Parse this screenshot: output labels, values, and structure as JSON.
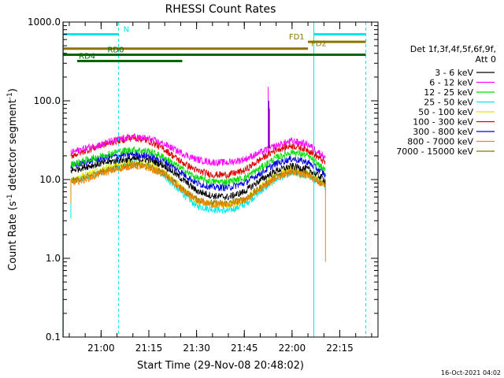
{
  "chart_data": {
    "type": "line",
    "title": "RHESSI Count Rates",
    "xlabel": "Start Time (29-Nov-08 20:48:02)",
    "ylabel_main": "Count Rate (s",
    "ylabel_sup1": "-1",
    "ylabel_mid": " detector segment",
    "ylabel_sup2": "-1",
    "ylabel_end": ")",
    "y_scale": "log",
    "ylim": [
      0.1,
      1000
    ],
    "xlim": [
      "20:48:02",
      "22:27:00"
    ],
    "x_ticks": [
      {
        "t": "21:00",
        "label": "21:00"
      },
      {
        "t": "21:15",
        "label": "21:15"
      },
      {
        "t": "21:30",
        "label": "21:30"
      },
      {
        "t": "21:45",
        "label": "21:45"
      },
      {
        "t": "22:00",
        "label": "22:00"
      },
      {
        "t": "22:15",
        "label": "22:15"
      }
    ],
    "y_ticks": [
      {
        "v": 0.1,
        "label": "0.1"
      },
      {
        "v": 1,
        "label": "1.0"
      },
      {
        "v": 10,
        "label": "10.0"
      },
      {
        "v": 100,
        "label": "100.0"
      },
      {
        "v": 1000,
        "label": "1000.0"
      }
    ],
    "legend": {
      "title_line1": "Det 1f,3f,4f,5f,6f,9f,",
      "title_line2": "Att 0",
      "position": "right"
    },
    "series": [
      {
        "name": "3 - 6 keV",
        "color": "#000000",
        "start": "20:50:30",
        "end": "22:10:30",
        "x": [
          "20:50:30",
          "20:55",
          "21:00",
          "21:05",
          "21:10",
          "21:15",
          "21:20",
          "21:25",
          "21:30",
          "21:35",
          "21:40",
          "21:45",
          "21:50",
          "21:55",
          "22:00",
          "22:05",
          "22:10",
          "22:10:30"
        ],
        "values": [
          13.0,
          14.5,
          16.0,
          17.5,
          18.2,
          18.0,
          15.0,
          10.5,
          7.2,
          6.2,
          6.0,
          7.0,
          9.8,
          13.0,
          14.8,
          13.5,
          10.2,
          9.5
        ]
      },
      {
        "name": "6 - 12 keV",
        "color": "#ff00ff",
        "start": "20:50:30",
        "end": "22:10:30",
        "x": [
          "20:50:30",
          "20:55",
          "21:00",
          "21:05",
          "21:10",
          "21:15",
          "21:20",
          "21:25",
          "21:30",
          "21:35",
          "21:40",
          "21:45",
          "21:50",
          "21:55",
          "22:00",
          "22:05",
          "22:10",
          "22:10:30"
        ],
        "values": [
          22,
          25,
          28,
          32,
          35,
          33,
          28,
          22,
          18,
          16.5,
          16.5,
          18,
          22,
          27,
          31,
          28,
          20,
          19
        ]
      },
      {
        "name": "12 - 25 keV",
        "color": "#00dd00",
        "start": "20:50:30",
        "end": "22:10:30",
        "x": [
          "20:50:30",
          "20:55",
          "21:00",
          "21:05",
          "21:10",
          "21:15",
          "21:20",
          "21:25",
          "21:30",
          "21:35",
          "21:40",
          "21:45",
          "21:50",
          "21:55",
          "22:00",
          "22:05",
          "22:10",
          "22:10:30"
        ],
        "values": [
          15.5,
          17.5,
          20,
          22.5,
          24,
          23,
          19,
          14,
          10.5,
          9.4,
          9.4,
          10.5,
          14,
          19,
          22.5,
          20,
          13.5,
          12.5
        ]
      },
      {
        "name": "25 - 50 keV",
        "color": "#00e8e8",
        "start": "20:50:30",
        "end": "22:10:30",
        "x": [
          "20:50:30",
          "20:55",
          "21:00",
          "21:05",
          "21:10",
          "21:15",
          "21:20",
          "21:25",
          "21:30",
          "21:35",
          "21:40",
          "21:45",
          "21:50",
          "21:55",
          "22:00",
          "22:05",
          "22:10",
          "22:10:30"
        ],
        "values": [
          9.5,
          10.5,
          12.5,
          14.5,
          16,
          15,
          11,
          7,
          4.6,
          4.2,
          4.0,
          4.8,
          7,
          10,
          12.2,
          11,
          8.5,
          8
        ]
      },
      {
        "name": "50 - 100 keV",
        "color": "#e8e800",
        "start": "20:50:30",
        "end": "22:10:30",
        "x": [
          "20:50:30",
          "20:55",
          "21:00",
          "21:05",
          "21:10",
          "21:15",
          "21:20",
          "21:25",
          "21:30",
          "21:35",
          "21:40",
          "21:45",
          "21:50",
          "21:55",
          "22:00",
          "22:05",
          "22:10",
          "22:10:30"
        ],
        "values": [
          10,
          11.5,
          13.5,
          15.5,
          16.5,
          16,
          12.5,
          8.2,
          5.4,
          4.8,
          4.7,
          5.5,
          8,
          11.5,
          13.5,
          12,
          9,
          8.5
        ]
      },
      {
        "name": "100 - 300 keV",
        "color": "#dd0000",
        "start": "20:50:30",
        "end": "22:10:30",
        "x": [
          "20:50:30",
          "20:55",
          "21:00",
          "21:05",
          "21:10",
          "21:15",
          "21:20",
          "21:25",
          "21:30",
          "21:35",
          "21:40",
          "21:45",
          "21:50",
          "21:55",
          "22:00",
          "22:05",
          "22:10",
          "22:10:30"
        ],
        "values": [
          20,
          23,
          27,
          31,
          34,
          31,
          24,
          17,
          13,
          11.5,
          11.5,
          13,
          18,
          24,
          27,
          24,
          17,
          16
        ]
      },
      {
        "name": "300 - 800 keV",
        "color": "#0000dd",
        "start": "20:50:30",
        "end": "22:10:30",
        "x": [
          "20:50:30",
          "20:55",
          "21:00",
          "21:05",
          "21:10",
          "21:15",
          "21:20",
          "21:25",
          "21:30",
          "21:35",
          "21:40",
          "21:45",
          "21:50",
          "21:55",
          "22:00",
          "22:05",
          "22:10",
          "22:10:30"
        ],
        "values": [
          14.5,
          16.5,
          18.5,
          20,
          21,
          20,
          17,
          12.5,
          9,
          8,
          7.9,
          9,
          12,
          16,
          18.5,
          16.5,
          12,
          11
        ]
      },
      {
        "name": "800 - 7000 keV",
        "color": "#ee8800",
        "start": "20:50:30",
        "end": "22:10:30",
        "x": [
          "20:50:30",
          "20:55",
          "21:00",
          "21:05",
          "21:10",
          "21:15",
          "21:20",
          "21:25",
          "21:30",
          "21:35",
          "21:40",
          "21:45",
          "21:50",
          "21:55",
          "22:00",
          "22:05",
          "22:10",
          "22:10:30"
        ],
        "values": [
          9,
          10,
          12,
          13.5,
          15,
          14,
          11.5,
          7.5,
          5.4,
          4.8,
          4.8,
          5.4,
          7.5,
          10.5,
          12.5,
          11,
          8.5,
          8
        ]
      },
      {
        "name": "7000 - 15000 keV",
        "color": "#8b7500",
        "start": "20:50:30",
        "end": "22:10:30",
        "x": [
          "20:50:30",
          "20:55",
          "21:00",
          "21:05",
          "21:10",
          "21:15",
          "21:20",
          "21:25",
          "21:30",
          "21:35",
          "21:40",
          "21:45",
          "21:50",
          "21:55",
          "22:00",
          "22:05",
          "22:10",
          "22:10:30"
        ],
        "values": [
          9.5,
          10.5,
          12.5,
          14,
          15.5,
          14.5,
          12,
          7.8,
          5.6,
          5,
          5,
          5.6,
          7.8,
          11,
          13,
          11.5,
          8.8,
          8.3
        ]
      }
    ],
    "spike": {
      "t": "21:52:30",
      "values": [
        {
          "color": "#ff00ff",
          "v": 150
        },
        {
          "color": "#0000dd",
          "v": 100
        },
        {
          "color": "#dd0000",
          "v": 80
        }
      ]
    },
    "edge_drops": [
      {
        "t": "20:50:30",
        "color": "#00e8e8",
        "v": 3.2
      },
      {
        "t": "20:50:30",
        "color": "#ee8800",
        "v": 5.0
      },
      {
        "t": "22:10:30",
        "color": "#ee8800",
        "v": 0.9
      }
    ],
    "vertical_lines": [
      {
        "t": "20:48:10",
        "color": "#00e8e8",
        "style": "solid"
      },
      {
        "t": "21:05:30",
        "color": "#00e8e8",
        "style": "dashed"
      },
      {
        "t": "22:06:50",
        "color": "#00e8e8",
        "style": "solid"
      },
      {
        "t": "22:23:10",
        "color": "#00e8e8",
        "style": "dashed"
      }
    ],
    "bars": [
      {
        "label": "N",
        "color": "#00e8e8",
        "level": 700,
        "segments": [
          [
            "20:48:10",
            "21:05:30"
          ],
          [
            "22:06:50",
            "22:23:10"
          ]
        ],
        "label_t": "21:07",
        "label_side": "right"
      },
      {
        "label": "FD1",
        "color": "#8b7500",
        "level": 560,
        "segments": [
          [
            "22:05:00",
            "22:23:10"
          ]
        ],
        "label_t": "21:59",
        "label_side": "right"
      },
      {
        "label": "FD2",
        "color": "#8b7500",
        "level": 460,
        "segments": [
          [
            "20:48:10",
            "22:05:00"
          ]
        ],
        "label_t": "22:06",
        "label_side": "right"
      },
      {
        "label": "RD0",
        "color": "#006600",
        "level": 385,
        "segments": [
          [
            "20:48:10",
            "21:25:30"
          ]
        ],
        "label_t": "21:02",
        "label_side": "right"
      },
      {
        "label": "RD4",
        "color": "#006600",
        "level": 320,
        "segments": [
          [
            "20:52:30",
            "21:25:30"
          ]
        ],
        "label_t": "20:53",
        "label_side": "right"
      },
      {
        "label": "",
        "color": "#006600",
        "level": 385,
        "segments": [
          [
            "21:25:30",
            "22:23:10"
          ]
        ],
        "label_t": "",
        "label_side": "right"
      }
    ]
  },
  "footer": {
    "stamp": "16-Oct-2021 04:02"
  }
}
